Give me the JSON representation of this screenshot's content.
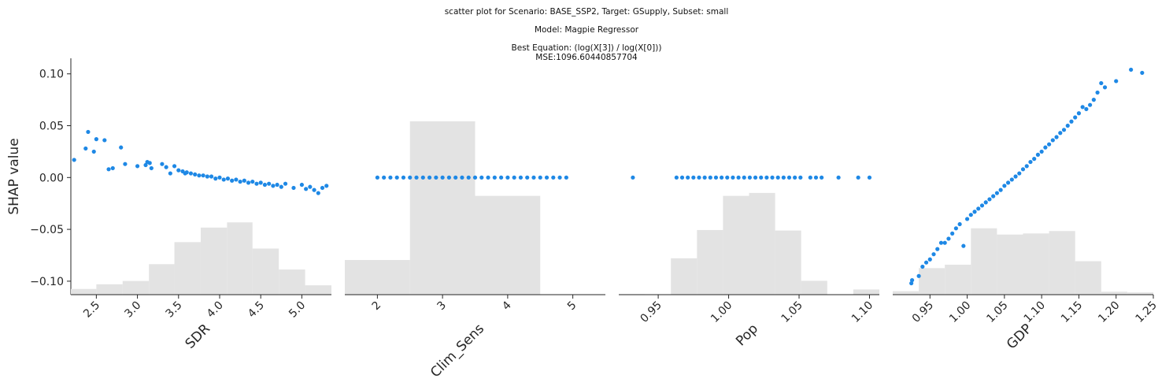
{
  "title": {
    "line1": "scatter plot for Scenario: BASE_SSP2, Target: GSupply, Subset: small",
    "line2": "Model: Magpie Regressor",
    "line3": "Best Equation: (log(X[3]) / log(X[0]))",
    "line4": "MSE:1096.60440857704"
  },
  "chart_data": {
    "type": "scatter",
    "ylabel": "SHAP value",
    "ylim": [
      -0.113,
      0.115
    ],
    "yticks": [
      0.1,
      0.05,
      0.0,
      -0.05,
      -0.1
    ],
    "ytick_labels": [
      "0.10",
      "0.05",
      "0.00",
      "−0.05",
      "−0.10"
    ],
    "point_color": "#1e88e5",
    "hist_color": "#e3e3e3",
    "panels": [
      {
        "xlabel": "SDR",
        "xlim": [
          2.19,
          5.36
        ],
        "xticks": [
          2.5,
          3.0,
          3.5,
          4.0,
          4.5,
          5.0
        ],
        "xtick_labels": [
          "2.5",
          "3.0",
          "3.5",
          "4.0",
          "4.5",
          "5.0"
        ],
        "hist": {
          "bins": [
            2.19,
            2.5,
            2.82,
            3.14,
            3.45,
            3.77,
            4.09,
            4.4,
            4.72,
            5.04,
            5.36
          ],
          "heights": [
            0.033,
            0.06,
            0.079,
            0.176,
            0.303,
            0.387,
            0.417,
            0.266,
            0.145,
            0.054
          ]
        },
        "points": [
          [
            2.23,
            0.017
          ],
          [
            2.37,
            0.028
          ],
          [
            2.4,
            0.044
          ],
          [
            2.47,
            0.025
          ],
          [
            2.5,
            0.037
          ],
          [
            2.6,
            0.036
          ],
          [
            2.65,
            0.008
          ],
          [
            2.7,
            0.009
          ],
          [
            2.8,
            0.029
          ],
          [
            2.85,
            0.013
          ],
          [
            3.0,
            0.011
          ],
          [
            3.1,
            0.012
          ],
          [
            3.12,
            0.015
          ],
          [
            3.15,
            0.014
          ],
          [
            3.17,
            0.009
          ],
          [
            3.3,
            0.013
          ],
          [
            3.35,
            0.01
          ],
          [
            3.4,
            0.004
          ],
          [
            3.45,
            0.011
          ],
          [
            3.5,
            0.007
          ],
          [
            3.55,
            0.006
          ],
          [
            3.58,
            0.004
          ],
          [
            3.6,
            0.005
          ],
          [
            3.65,
            0.004
          ],
          [
            3.7,
            0.003
          ],
          [
            3.75,
            0.002
          ],
          [
            3.8,
            0.002
          ],
          [
            3.85,
            0.001
          ],
          [
            3.9,
            0.001
          ],
          [
            3.95,
            -0.001
          ],
          [
            4.0,
            0.0
          ],
          [
            4.05,
            -0.002
          ],
          [
            4.1,
            -0.001
          ],
          [
            4.15,
            -0.003
          ],
          [
            4.2,
            -0.002
          ],
          [
            4.25,
            -0.004
          ],
          [
            4.3,
            -0.003
          ],
          [
            4.35,
            -0.005
          ],
          [
            4.4,
            -0.004
          ],
          [
            4.45,
            -0.006
          ],
          [
            4.5,
            -0.005
          ],
          [
            4.55,
            -0.007
          ],
          [
            4.6,
            -0.006
          ],
          [
            4.65,
            -0.008
          ],
          [
            4.7,
            -0.007
          ],
          [
            4.75,
            -0.009
          ],
          [
            4.8,
            -0.006
          ],
          [
            4.9,
            -0.01
          ],
          [
            5.0,
            -0.007
          ],
          [
            5.05,
            -0.011
          ],
          [
            5.1,
            -0.009
          ],
          [
            5.15,
            -0.012
          ],
          [
            5.2,
            -0.015
          ],
          [
            5.25,
            -0.01
          ],
          [
            5.3,
            -0.008
          ]
        ]
      },
      {
        "xlabel": "Clim_Sens",
        "xlim": [
          1.5,
          5.5
        ],
        "xticks": [
          2,
          3,
          4,
          5
        ],
        "xtick_labels": [
          "2",
          "3",
          "4",
          "5"
        ],
        "hist": {
          "bins": [
            1.5,
            2.5,
            3.5,
            4.5,
            5.5
          ],
          "heights": [
            0.2,
            1.0,
            0.57,
            0.0
          ]
        },
        "points": [
          [
            2.0,
            0.0
          ],
          [
            2.1,
            0.0
          ],
          [
            2.2,
            0.0
          ],
          [
            2.3,
            0.0
          ],
          [
            2.4,
            0.0
          ],
          [
            2.5,
            0.0
          ],
          [
            2.6,
            0.0
          ],
          [
            2.7,
            0.0
          ],
          [
            2.8,
            0.0
          ],
          [
            2.9,
            0.0
          ],
          [
            3.0,
            0.0
          ],
          [
            3.1,
            0.0
          ],
          [
            3.2,
            0.0
          ],
          [
            3.3,
            0.0
          ],
          [
            3.4,
            0.0
          ],
          [
            3.5,
            0.0
          ],
          [
            3.6,
            0.0
          ],
          [
            3.7,
            0.0
          ],
          [
            3.8,
            0.0
          ],
          [
            3.9,
            0.0
          ],
          [
            4.0,
            0.0
          ],
          [
            4.1,
            0.0
          ],
          [
            4.2,
            0.0
          ],
          [
            4.3,
            0.0
          ],
          [
            4.4,
            0.0
          ],
          [
            4.5,
            0.0
          ],
          [
            4.6,
            0.0
          ],
          [
            4.7,
            0.0
          ],
          [
            4.8,
            0.0
          ],
          [
            4.9,
            0.0
          ]
        ]
      },
      {
        "xlabel": "Pop",
        "xlim": [
          0.922,
          1.107
        ],
        "xticks": [
          0.95,
          1.0,
          1.05,
          1.1
        ],
        "xtick_labels": [
          "0.95",
          "1.00",
          "1.05",
          "1.10"
        ],
        "hist": {
          "bins": [
            0.922,
            0.9405,
            0.959,
            0.9775,
            0.996,
            1.0145,
            1.033,
            1.0515,
            1.07,
            1.0885,
            1.107
          ],
          "heights": [
            0.003,
            0.0,
            0.21,
            0.373,
            0.57,
            0.587,
            0.37,
            0.08,
            0.0,
            0.03
          ]
        },
        "points": [
          [
            0.932,
            0.0
          ],
          [
            0.963,
            0.0
          ],
          [
            0.967,
            0.0
          ],
          [
            0.971,
            0.0
          ],
          [
            0.975,
            0.0
          ],
          [
            0.979,
            0.0
          ],
          [
            0.983,
            0.0
          ],
          [
            0.987,
            0.0
          ],
          [
            0.991,
            0.0
          ],
          [
            0.995,
            0.0
          ],
          [
            0.999,
            0.0
          ],
          [
            1.003,
            0.0
          ],
          [
            1.007,
            0.0
          ],
          [
            1.011,
            0.0
          ],
          [
            1.015,
            0.0
          ],
          [
            1.019,
            0.0
          ],
          [
            1.023,
            0.0
          ],
          [
            1.027,
            0.0
          ],
          [
            1.031,
            0.0
          ],
          [
            1.035,
            0.0
          ],
          [
            1.039,
            0.0
          ],
          [
            1.043,
            0.0
          ],
          [
            1.047,
            0.0
          ],
          [
            1.051,
            0.0
          ],
          [
            1.058,
            0.0
          ],
          [
            1.062,
            0.0
          ],
          [
            1.066,
            0.0
          ],
          [
            1.078,
            0.0
          ],
          [
            1.092,
            0.0
          ],
          [
            1.1,
            0.0
          ]
        ]
      },
      {
        "xlabel": "GDP",
        "xlim": [
          0.9,
          1.25
        ],
        "xticks": [
          0.95,
          1.0,
          1.05,
          1.1,
          1.15,
          1.2,
          1.25
        ],
        "xtick_labels": [
          "0.95",
          "1.00",
          "1.05",
          "1.10",
          "1.15",
          "1.20",
          "1.25"
        ],
        "hist": {
          "bins": [
            0.9,
            0.935,
            0.97,
            1.005,
            1.04,
            1.075,
            1.11,
            1.145,
            1.18,
            1.215,
            1.25
          ],
          "heights": [
            0.02,
            0.153,
            0.173,
            0.383,
            0.347,
            0.353,
            0.367,
            0.193,
            0.017,
            0.013
          ]
        },
        "points": [
          [
            0.925,
            -0.102
          ],
          [
            0.926,
            -0.099
          ],
          [
            0.935,
            -0.095
          ],
          [
            0.94,
            -0.086
          ],
          [
            0.945,
            -0.082
          ],
          [
            0.95,
            -0.079
          ],
          [
            0.955,
            -0.074
          ],
          [
            0.96,
            -0.069
          ],
          [
            0.965,
            -0.063
          ],
          [
            0.97,
            -0.063
          ],
          [
            0.975,
            -0.059
          ],
          [
            0.98,
            -0.054
          ],
          [
            0.985,
            -0.049
          ],
          [
            0.99,
            -0.045
          ],
          [
            0.995,
            -0.066
          ],
          [
            1.0,
            -0.04
          ],
          [
            1.005,
            -0.036
          ],
          [
            1.01,
            -0.033
          ],
          [
            1.015,
            -0.03
          ],
          [
            1.02,
            -0.027
          ],
          [
            1.025,
            -0.024
          ],
          [
            1.03,
            -0.021
          ],
          [
            1.035,
            -0.018
          ],
          [
            1.04,
            -0.015
          ],
          [
            1.045,
            -0.012
          ],
          [
            1.05,
            -0.008
          ],
          [
            1.055,
            -0.005
          ],
          [
            1.06,
            -0.002
          ],
          [
            1.065,
            0.001
          ],
          [
            1.07,
            0.004
          ],
          [
            1.075,
            0.008
          ],
          [
            1.08,
            0.011
          ],
          [
            1.085,
            0.015
          ],
          [
            1.09,
            0.018
          ],
          [
            1.095,
            0.022
          ],
          [
            1.1,
            0.025
          ],
          [
            1.105,
            0.029
          ],
          [
            1.11,
            0.032
          ],
          [
            1.115,
            0.036
          ],
          [
            1.12,
            0.039
          ],
          [
            1.125,
            0.043
          ],
          [
            1.13,
            0.046
          ],
          [
            1.135,
            0.05
          ],
          [
            1.14,
            0.054
          ],
          [
            1.145,
            0.058
          ],
          [
            1.15,
            0.062
          ],
          [
            1.155,
            0.068
          ],
          [
            1.16,
            0.066
          ],
          [
            1.165,
            0.07
          ],
          [
            1.17,
            0.075
          ],
          [
            1.175,
            0.082
          ],
          [
            1.18,
            0.091
          ],
          [
            1.185,
            0.087
          ],
          [
            1.2,
            0.093
          ],
          [
            1.22,
            0.104
          ],
          [
            1.235,
            0.101
          ]
        ]
      }
    ]
  }
}
